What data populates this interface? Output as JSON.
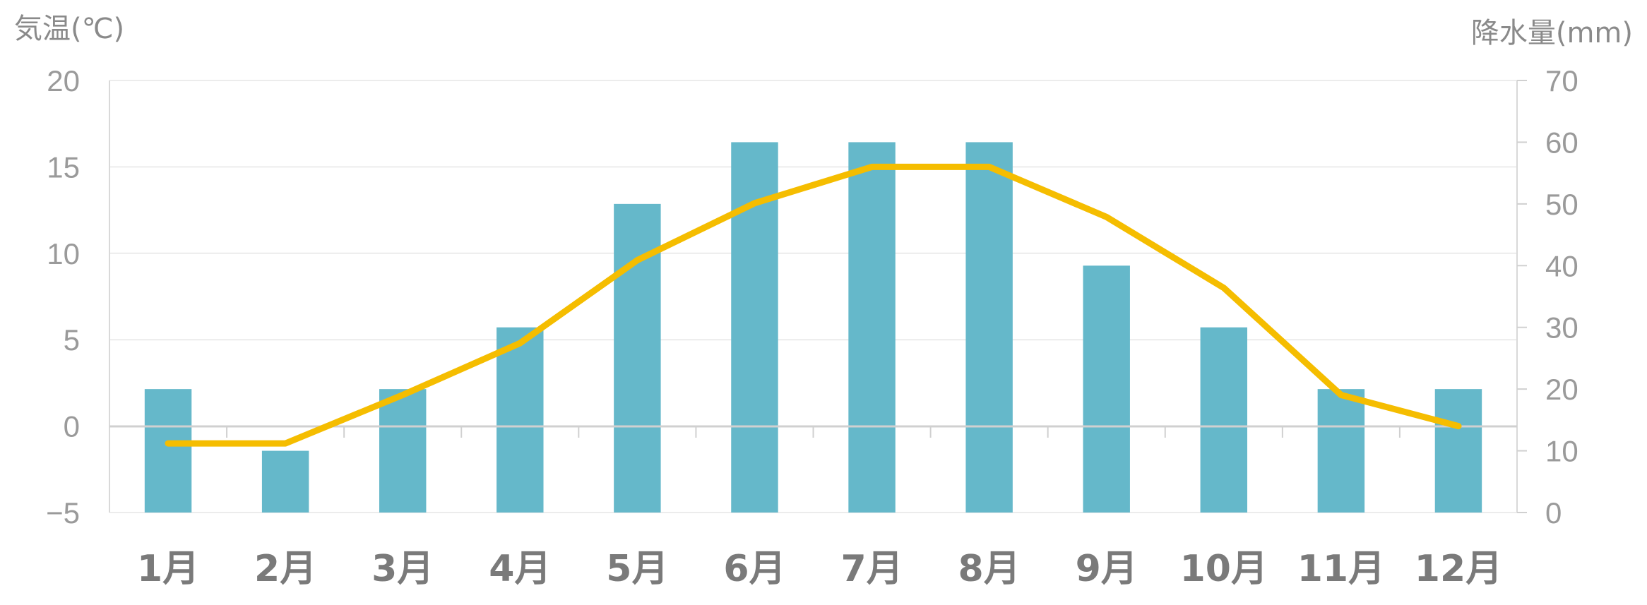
{
  "chart_data": {
    "type": "bar+line",
    "categories": [
      "1月",
      "2月",
      "3月",
      "4月",
      "5月",
      "6月",
      "7月",
      "8月",
      "9月",
      "10月",
      "11月",
      "12月"
    ],
    "series": [
      {
        "type": "bar",
        "axis": "right",
        "color": "#65b8ca",
        "values": [
          20,
          10,
          20,
          30,
          50,
          60,
          60,
          60,
          40,
          30,
          20,
          20
        ]
      },
      {
        "type": "line",
        "axis": "left",
        "color": "#f5bd00",
        "values": [
          -1,
          -1,
          1.8,
          4.8,
          9.6,
          12.9,
          15,
          15,
          12.1,
          8,
          1.8,
          0
        ]
      }
    ],
    "y_left": {
      "label": "気温(℃)",
      "ticks": [
        "20",
        "15",
        "10",
        "5",
        "0",
        "−5"
      ],
      "lim": [
        -5,
        20
      ]
    },
    "y_right": {
      "label": "降水量(mm)",
      "ticks": [
        "70",
        "60",
        "50",
        "40",
        "30",
        "20",
        "10",
        "0"
      ],
      "lim": [
        0,
        70
      ]
    },
    "grid": true,
    "legend": "none"
  }
}
